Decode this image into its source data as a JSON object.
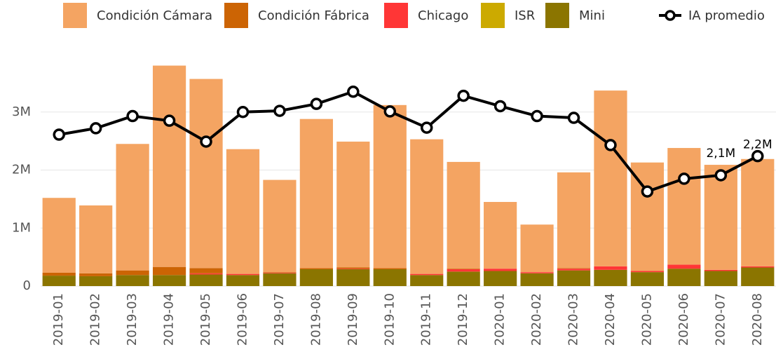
{
  "chart_data": {
    "type": "bar",
    "stacked": true,
    "categories": [
      "2019-01",
      "2019-02",
      "2019-03",
      "2019-04",
      "2019-05",
      "2019-06",
      "2019-07",
      "2019-08",
      "2019-09",
      "2019-10",
      "2019-11",
      "2019-12",
      "2020-01",
      "2020-02",
      "2020-03",
      "2020-04",
      "2020-05",
      "2020-06",
      "2020-07",
      "2020-08"
    ],
    "series": [
      {
        "name": "Condición Cámara",
        "color": "#f4a462",
        "values": [
          1290000,
          1170000,
          2180000,
          3470000,
          3260000,
          2150000,
          1590000,
          2570000,
          2170000,
          2810000,
          2320000,
          1840000,
          1150000,
          820000,
          1650000,
          3030000,
          1870000,
          2010000,
          1810000,
          1850000
        ]
      },
      {
        "name": "Condición Fábrica",
        "color": "#cc6404",
        "values": [
          50000,
          50000,
          80000,
          140000,
          90000,
          0,
          10000,
          20000,
          20000,
          20000,
          0,
          10000,
          0,
          0,
          10000,
          0,
          0,
          0,
          0,
          0
        ]
      },
      {
        "name": "Chicago",
        "color": "#ff3636",
        "values": [
          0,
          0,
          0,
          0,
          20000,
          20000,
          10000,
          0,
          10000,
          0,
          20000,
          40000,
          40000,
          20000,
          30000,
          60000,
          20000,
          70000,
          20000,
          20000
        ]
      },
      {
        "name": "ISR",
        "color": "#ccaa00",
        "values": [
          0,
          0,
          0,
          0,
          0,
          0,
          0,
          0,
          0,
          0,
          0,
          0,
          0,
          0,
          0,
          0,
          0,
          0,
          0,
          0
        ]
      },
      {
        "name": "Mini",
        "color": "#8b7500",
        "values": [
          180000,
          170000,
          190000,
          190000,
          200000,
          190000,
          220000,
          290000,
          290000,
          290000,
          190000,
          250000,
          260000,
          220000,
          270000,
          280000,
          240000,
          300000,
          260000,
          320000
        ]
      },
      {
        "name": "IA promedio",
        "type": "line",
        "color": "#000000",
        "values": [
          2610000,
          2720000,
          2930000,
          2850000,
          2490000,
          3000000,
          3020000,
          3140000,
          3350000,
          3010000,
          2730000,
          3280000,
          3100000,
          2930000,
          2900000,
          2430000,
          1630000,
          1850000,
          1910000,
          2240000
        ]
      }
    ],
    "stack_order": [
      "Mini",
      "ISR",
      "Chicago",
      "Condición Fábrica",
      "Condición Cámara"
    ],
    "ylim": [
      0,
      4000000
    ],
    "yticks": [
      0,
      {
        "value": 1000000,
        "label": "1M"
      },
      {
        "value": 2000000,
        "label": "2M"
      },
      {
        "value": 3000000,
        "label": "3M"
      }
    ],
    "grid": true,
    "legend": "top",
    "annotations": [
      {
        "text": "2,1M",
        "x": "2020-07"
      },
      {
        "text": "2,2M",
        "x": "2020-08"
      }
    ]
  }
}
